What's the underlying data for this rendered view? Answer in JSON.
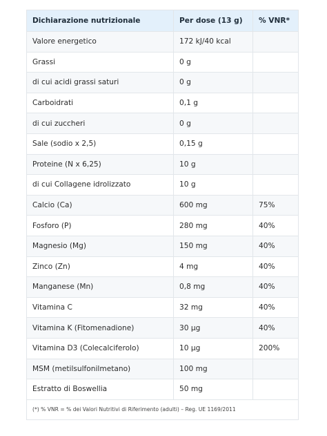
{
  "table": {
    "headers": [
      "Dichiarazione nutrizionale",
      "Per dose (13 g)",
      "% VNR*"
    ],
    "rows": [
      {
        "name": "Valore energetico",
        "dose": "172 kJ/40 kcal",
        "vnr": ""
      },
      {
        "name": "Grassi",
        "dose": "0 g",
        "vnr": ""
      },
      {
        "name": "di cui acidi grassi saturi",
        "dose": "0 g",
        "vnr": ""
      },
      {
        "name": "Carboidrati",
        "dose": "0,1 g",
        "vnr": ""
      },
      {
        "name": "di cui zuccheri",
        "dose": "0 g",
        "vnr": ""
      },
      {
        "name": "Sale (sodio x 2,5)",
        "dose": "0,15 g",
        "vnr": ""
      },
      {
        "name": "Proteine (N x 6,25)",
        "dose": "10 g",
        "vnr": ""
      },
      {
        "name": "di cui Collagene idrolizzato",
        "dose": "10 g",
        "vnr": ""
      },
      {
        "name": "Calcio (Ca)",
        "dose": "600 mg",
        "vnr": "75%"
      },
      {
        "name": "Fosforo (P)",
        "dose": "280 mg",
        "vnr": "40%"
      },
      {
        "name": "Magnesio (Mg)",
        "dose": "150 mg",
        "vnr": "40%"
      },
      {
        "name": "Zinco (Zn)",
        "dose": "4 mg",
        "vnr": "40%"
      },
      {
        "name": "Manganese (Mn)",
        "dose": "0,8 mg",
        "vnr": "40%"
      },
      {
        "name": "Vitamina C",
        "dose": "32 mg",
        "vnr": "40%"
      },
      {
        "name": "Vitamina K (Fitomenadione)",
        "dose": "30 µg",
        "vnr": "40%"
      },
      {
        "name": "Vitamina D3 (Colecalciferolo)",
        "dose": "10 µg",
        "vnr": "200%"
      },
      {
        "name": "MSM (metilsulfonilmetano)",
        "dose": "100 mg",
        "vnr": ""
      },
      {
        "name": "Estratto di Boswellia",
        "dose": "50 mg",
        "vnr": ""
      }
    ],
    "footnote": "(*) % VNR = % dei Valori Nutritivi di Riferimento (adulti) – Reg. UE 1169/2011"
  }
}
